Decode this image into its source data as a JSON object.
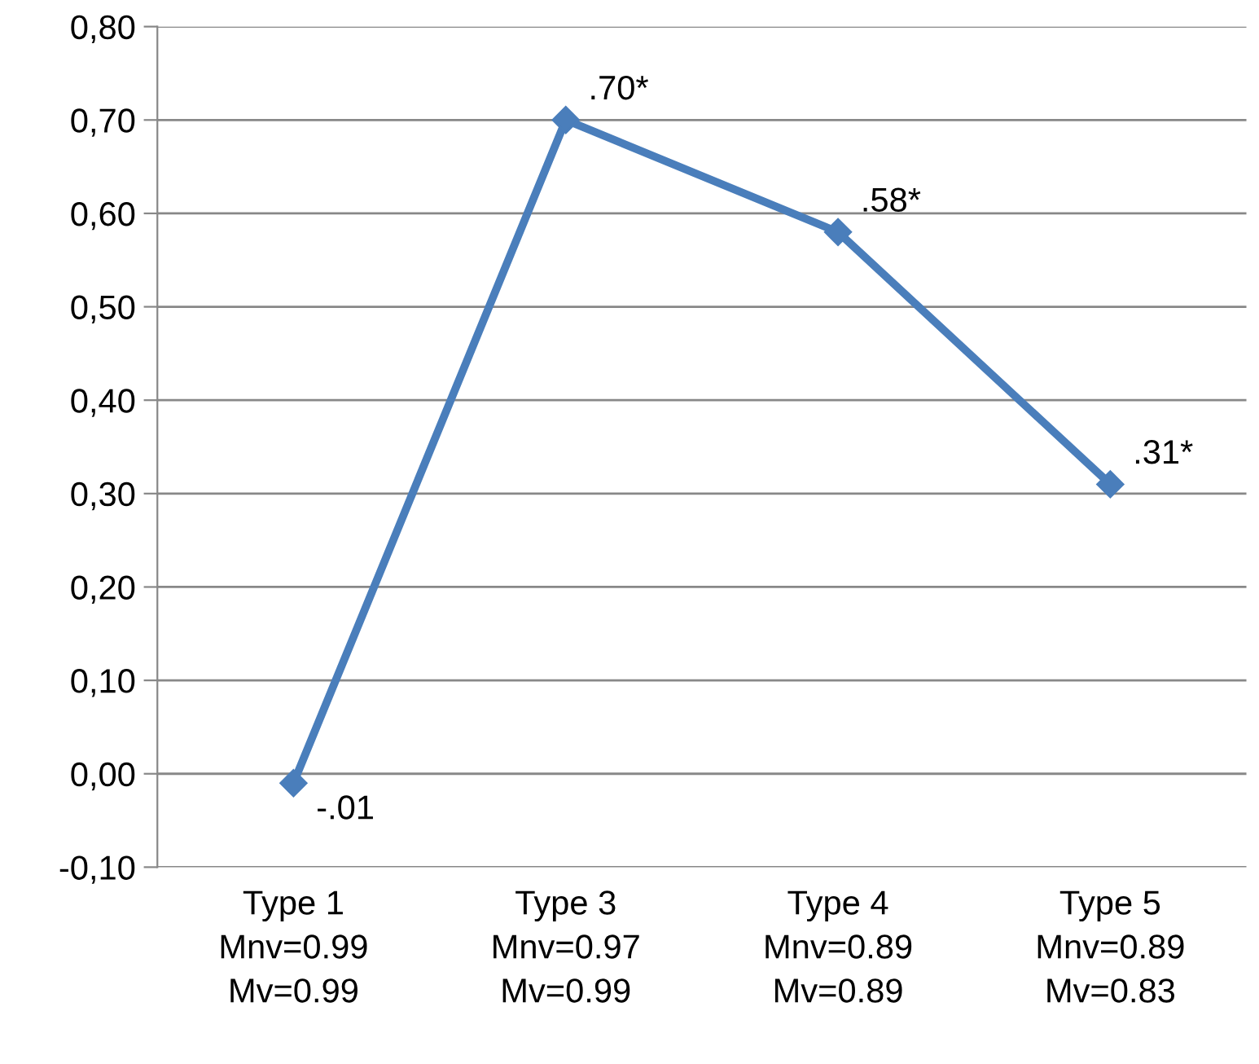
{
  "chart_data": {
    "type": "line",
    "categories": [
      "Type 1\nMnv=0.99\nMv=0.99",
      "Type 3\nMnv=0.97\nMv=0.99",
      "Type 4\nMnv=0.89\nMv=0.89",
      "Type 5\nMnv=0.89\nMv=0.83"
    ],
    "series": [
      {
        "color": "#4a7ebb",
        "values": [
          -0.01,
          0.7,
          0.58,
          0.31
        ],
        "value_labels": [
          "-.01",
          ".70*",
          ".58*",
          ".31*"
        ]
      }
    ],
    "ylim": [
      -0.1,
      0.8
    ],
    "yticks": [
      {
        "value": -0.1,
        "label": "-0,10"
      },
      {
        "value": 0,
        "label": "0,00"
      },
      {
        "value": 0.1,
        "label": "0,10"
      },
      {
        "value": 0.2,
        "label": "0,20"
      },
      {
        "value": 0.3,
        "label": "0,30"
      },
      {
        "value": 0.4,
        "label": "0,40"
      },
      {
        "value": 0.5,
        "label": "0,50"
      },
      {
        "value": 0.6,
        "label": "0,60"
      },
      {
        "value": 0.7,
        "label": "0,70"
      },
      {
        "value": 0.8,
        "label": "0,80"
      }
    ],
    "grid": "y",
    "marker": "diamond",
    "line_style": "solid"
  }
}
